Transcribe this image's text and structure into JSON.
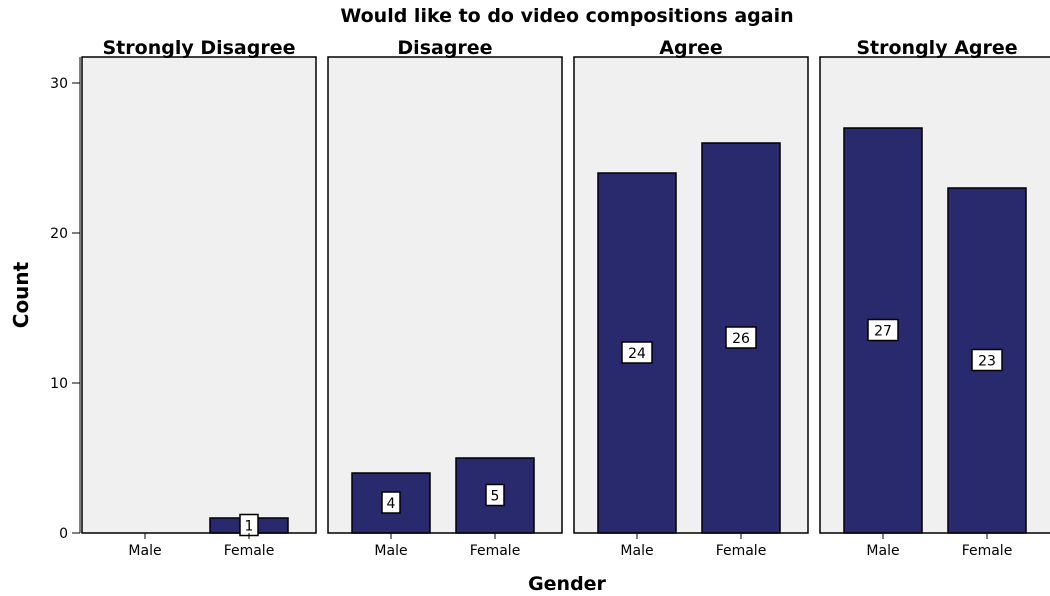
{
  "chart_data": {
    "type": "bar",
    "title": "Would like to do video compositions again",
    "xlabel": "Gender",
    "ylabel": "Count",
    "ylim": [
      0,
      31
    ],
    "yticks": [
      0,
      10,
      20,
      30
    ],
    "categories": [
      "Male",
      "Female"
    ],
    "bar_color": "#29296e",
    "panel_background": "#f0f0f0",
    "panels": [
      {
        "name": "Strongly Disagree",
        "values": [
          0,
          1
        ],
        "labels": [
          "",
          "1"
        ]
      },
      {
        "name": "Disagree",
        "values": [
          4,
          5
        ],
        "labels": [
          "4",
          "5"
        ]
      },
      {
        "name": "Agree",
        "values": [
          24,
          26
        ],
        "labels": [
          "24",
          "26"
        ]
      },
      {
        "name": "Strongly Agree",
        "values": [
          27,
          23
        ],
        "labels": [
          "27",
          "23"
        ]
      }
    ]
  }
}
